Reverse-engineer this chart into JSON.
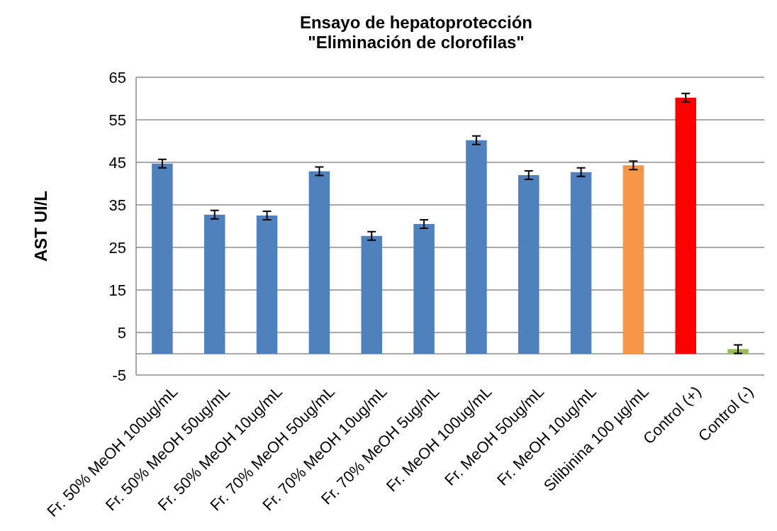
{
  "chart_data": {
    "type": "bar",
    "title": "Ensayo de hepatoprotección\n\"Eliminación de clorofilas\"",
    "ylabel": "AST UI/L",
    "categories": [
      "Fr. 50% MeOH 100ug/mL",
      "Fr. 50% MeOH 50ug/mL",
      "Fr. 50% MeOH 10ug/mL",
      "Fr. 70% MeOH 50ug/mL",
      "Fr. 70% MeOH 10ug/mL",
      "Fr. 70% MeOH 5ug/mL",
      "Fr. MeOH 100ug/mL",
      "Fr. MeOH 50ug/mL",
      "Fr. MeOH 10ug/mL",
      "Silibinina 100 µg/mL",
      "Control (+)",
      "Control (-)"
    ],
    "values": [
      44.7,
      32.7,
      32.5,
      42.9,
      27.7,
      30.5,
      50.2,
      42.0,
      42.7,
      44.3,
      60.2,
      1.1
    ],
    "errors": [
      1,
      1,
      1,
      1,
      1,
      1,
      1,
      1,
      1,
      1,
      1,
      1
    ],
    "colors": [
      "#4f81bd",
      "#4f81bd",
      "#4f81bd",
      "#4f81bd",
      "#4f81bd",
      "#4f81bd",
      "#4f81bd",
      "#4f81bd",
      "#4f81bd",
      "#f79646",
      "#ff0000",
      "#9bbb59"
    ],
    "ylim": [
      -5,
      65
    ],
    "yticks": [
      -5,
      5,
      15,
      25,
      35,
      45,
      55,
      65
    ],
    "grid": "y"
  }
}
